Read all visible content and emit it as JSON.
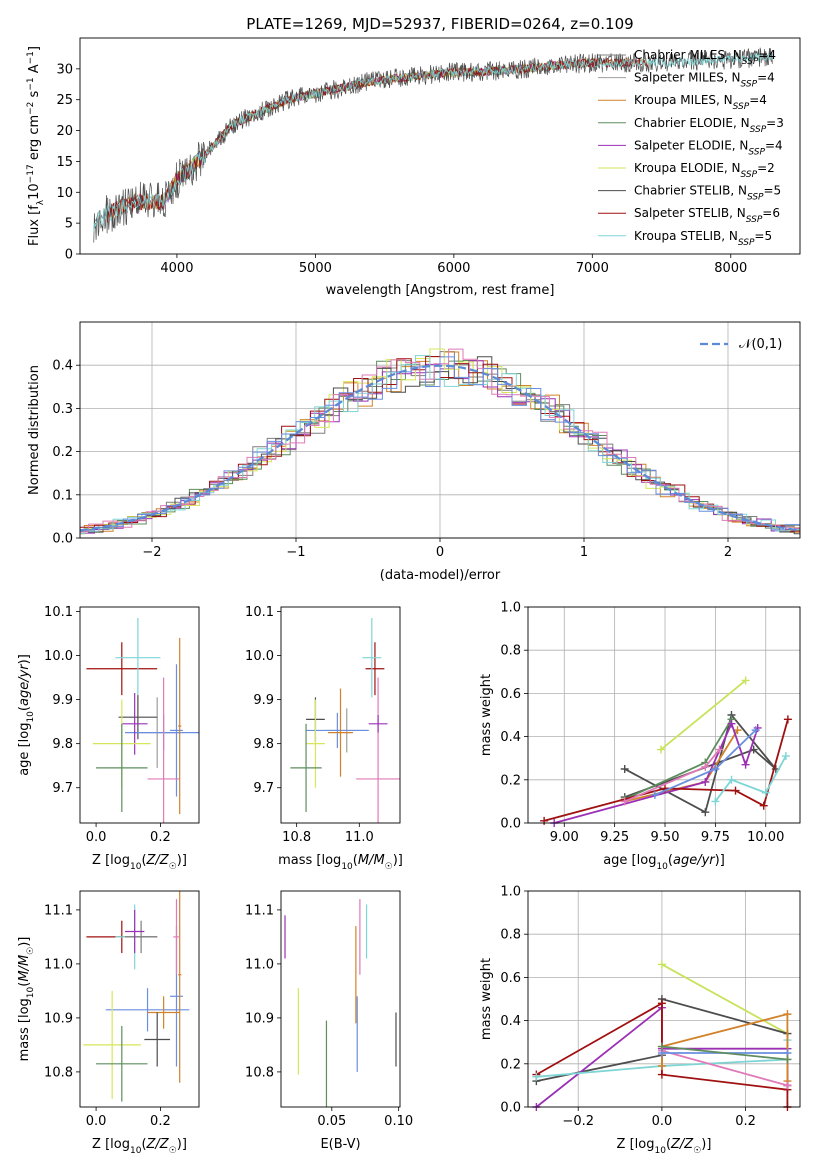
{
  "colors": [
    "#7f7f7f",
    "#9e9e9e",
    "#d2822a",
    "#5e8d5e",
    "#9b30b5",
    "#d7e55a",
    "#4d4d4d",
    "#a01010",
    "#7fd5d5",
    "#e07ab8",
    "#6a8ee0",
    "#c7e35a"
  ],
  "chart_data": [
    {
      "id": "spectrum",
      "type": "line",
      "title": "PLATE=1269, MJD=52937, FIBERID=0264, z=0.109",
      "xlabel": "wavelength [Angstrom, rest frame]",
      "ylabel": "Flux [f_λ 10^-17 erg cm^-2 s^-1 A^-1]",
      "xlim": [
        3300,
        8500
      ],
      "ylim": [
        0,
        35
      ],
      "xticks": [
        4000,
        5000,
        6000,
        7000,
        8000
      ],
      "yticks": [
        0,
        5,
        10,
        15,
        20,
        25,
        30
      ],
      "grid": false,
      "legend_position": "upper-right",
      "continuum": {
        "x": [
          3400,
          3500,
          3700,
          3900,
          4000,
          4200,
          4400,
          4600,
          4800,
          5000,
          5200,
          5400,
          5600,
          5800,
          6000,
          6200,
          6500,
          6700,
          7000,
          7300,
          7600,
          8000,
          8300
        ],
        "y": [
          5,
          6.5,
          8.5,
          8.5,
          12,
          16,
          21,
          23,
          25,
          26,
          27,
          28,
          28.5,
          29,
          29.5,
          29.5,
          30,
          30.5,
          31,
          31,
          31,
          31.5,
          32
        ]
      },
      "series": [
        {
          "name": "Chabrier MILES, N_SSP=4",
          "x_range": [
            3400,
            7250
          ]
        },
        {
          "name": "Salpeter MILES, N_SSP=4",
          "x_range": [
            3500,
            7250
          ]
        },
        {
          "name": "Kroupa MILES, N_SSP=4",
          "x_range": [
            3500,
            7400
          ]
        },
        {
          "name": "Chabrier ELODIE, N_SSP=3",
          "x_range": [
            3900,
            6800
          ]
        },
        {
          "name": "Salpeter ELODIE, N_SSP=4",
          "x_range": [
            3900,
            6800
          ]
        },
        {
          "name": "Kroupa ELODIE, N_SSP=2",
          "x_range": [
            3900,
            6800
          ]
        },
        {
          "name": "Chabrier STELIB, N_SSP=5",
          "x_range": [
            3400,
            8300
          ]
        },
        {
          "name": "Salpeter STELIB, N_SSP=6",
          "x_range": [
            3500,
            7400
          ]
        },
        {
          "name": "Kroupa STELIB, N_SSP=5",
          "x_range": [
            3400,
            8300
          ]
        }
      ],
      "legend": [
        {
          "base": "Chabrier MILES, N",
          "sub": "SSP",
          "tail": "=4"
        },
        {
          "base": "Salpeter MILES, N",
          "sub": "SSP",
          "tail": "=4"
        },
        {
          "base": "Kroupa MILES, N",
          "sub": "SSP",
          "tail": "=4"
        },
        {
          "base": "Chabrier ELODIE, N",
          "sub": "SSP",
          "tail": "=3"
        },
        {
          "base": "Salpeter ELODIE, N",
          "sub": "SSP",
          "tail": "=4"
        },
        {
          "base": "Kroupa ELODIE, N",
          "sub": "SSP",
          "tail": "=2"
        },
        {
          "base": "Chabrier STELIB, N",
          "sub": "SSP",
          "tail": "=5"
        },
        {
          "base": "Salpeter STELIB, N",
          "sub": "SSP",
          "tail": "=6"
        },
        {
          "base": "Kroupa STELIB, N",
          "sub": "SSP",
          "tail": "=5"
        }
      ]
    },
    {
      "id": "residuals",
      "type": "line",
      "xlabel": "(data-model)/error",
      "ylabel": "Normed distribution",
      "xlim": [
        -2.5,
        2.5
      ],
      "ylim": [
        0,
        0.5
      ],
      "xticks": [
        -2,
        -1,
        0,
        1,
        2
      ],
      "yticks": [
        0.0,
        0.1,
        0.2,
        0.3,
        0.4
      ],
      "grid": true,
      "legend": "𝒩(0,1)",
      "legend_position": "upper-right",
      "bin_width": 0.1,
      "gaussian": {
        "mean": 0,
        "sigma": 1
      }
    },
    {
      "id": "age-vs-Z",
      "type": "scatter",
      "xlabel": "Z [log₁₀(Z/Z☉)]",
      "ylabel": "age [log₁₀(age/yr)]",
      "xlim": [
        -0.05,
        0.32
      ],
      "ylim": [
        9.62,
        10.11
      ],
      "xticks": [
        0.0,
        0.2
      ],
      "yticks": [
        9.7,
        9.8,
        9.9,
        10.0,
        10.1
      ],
      "points": [
        {
          "x": 0.08,
          "xerr": 0.11,
          "y": 9.97,
          "yerr": 0.06,
          "c": 7
        },
        {
          "x": 0.13,
          "xerr": 0.07,
          "y": 9.995,
          "yerr": 0.09,
          "c": 8
        },
        {
          "x": 0.19,
          "xerr": 0.07,
          "y": 9.825,
          "yerr": 0.08,
          "c": 1
        },
        {
          "x": 0.13,
          "xerr": 0.06,
          "y": 9.86,
          "yerr": 0.05,
          "c": 6
        },
        {
          "x": 0.21,
          "xerr": 0.12,
          "y": 9.825,
          "yerr": 0.04,
          "c": 10
        },
        {
          "x": 0.25,
          "xerr": 0.02,
          "y": 9.83,
          "yerr": 0.15,
          "c": 10
        },
        {
          "x": 0.26,
          "xerr": 0.005,
          "y": 9.84,
          "yerr": 0.2,
          "c": 2
        },
        {
          "x": 0.21,
          "xerr": 0.05,
          "y": 9.72,
          "yerr": 0.23,
          "c": 9
        },
        {
          "x": 0.12,
          "xerr": 0.04,
          "y": 9.845,
          "yerr": 0.07,
          "c": 4
        },
        {
          "x": 0.08,
          "xerr": 0.09,
          "y": 9.8,
          "yerr": 0.1,
          "c": 5
        },
        {
          "x": 0.08,
          "xerr": 0.08,
          "y": 9.745,
          "yerr": 0.1,
          "c": 3
        }
      ]
    },
    {
      "id": "age-vs-mass",
      "type": "scatter",
      "xlabel": "mass [log₁₀(M/M☉)]",
      "ylabel": "",
      "xlim": [
        10.75,
        11.13
      ],
      "ylim": [
        9.62,
        10.11
      ],
      "xticks": [
        10.8,
        11.0
      ],
      "yticks": [
        9.7,
        9.8,
        9.9,
        10.0,
        10.1
      ],
      "points": [
        {
          "x": 11.05,
          "xerr": 0.03,
          "y": 9.97,
          "yerr": 0.06,
          "c": 7
        },
        {
          "x": 11.04,
          "xerr": 0.03,
          "y": 9.995,
          "yerr": 0.09,
          "c": 8
        },
        {
          "x": 10.96,
          "xerr": 0.07,
          "y": 9.83,
          "yerr": 0.05,
          "c": 1
        },
        {
          "x": 10.86,
          "xerr": 0.03,
          "y": 9.855,
          "yerr": 0.05,
          "c": 6
        },
        {
          "x": 10.93,
          "xerr": 0.1,
          "y": 9.83,
          "yerr": 0.04,
          "c": 10
        },
        {
          "x": 10.94,
          "xerr": 0.04,
          "y": 9.825,
          "yerr": 0.1,
          "c": 2
        },
        {
          "x": 11.06,
          "xerr": 0.07,
          "y": 9.72,
          "yerr": 0.23,
          "c": 9
        },
        {
          "x": 11.06,
          "xerr": 0.03,
          "y": 9.845,
          "yerr": 0.02,
          "c": 4
        },
        {
          "x": 10.86,
          "xerr": 0.03,
          "y": 9.8,
          "yerr": 0.1,
          "c": 5
        },
        {
          "x": 10.83,
          "xerr": 0.05,
          "y": 9.745,
          "yerr": 0.1,
          "c": 3
        }
      ]
    },
    {
      "id": "weight-vs-age",
      "type": "line",
      "xlabel": "age [log₁₀(age/yr)]",
      "ylabel": "mass weight",
      "xlim": [
        8.82,
        10.17
      ],
      "ylim": [
        0,
        1.0
      ],
      "xticks": [
        9.0,
        9.25,
        9.5,
        9.75,
        10.0
      ],
      "yticks": [
        0.0,
        0.2,
        0.4,
        0.6,
        0.8,
        1.0
      ],
      "grid": true,
      "series": [
        {
          "c": 11,
          "x": [
            9.48,
            9.9
          ],
          "y": [
            0.34,
            0.66
          ]
        },
        {
          "c": 6,
          "x": [
            9.3,
            9.7,
            9.83,
            10.05,
            9.94,
            9.3
          ],
          "y": [
            0.25,
            0.05,
            0.5,
            0.25,
            0.34,
            0.12
          ]
        },
        {
          "c": 3,
          "x": [
            9.3,
            9.7,
            9.83
          ],
          "y": [
            0.11,
            0.28,
            0.48
          ]
        },
        {
          "c": 2,
          "x": [
            9.3,
            9.7,
            9.86
          ],
          "y": [
            0.1,
            0.19,
            0.43
          ]
        },
        {
          "c": 4,
          "x": [
            8.95,
            9.7,
            9.83,
            9.9,
            9.96
          ],
          "y": [
            0.0,
            0.19,
            0.46,
            0.27,
            0.44
          ]
        },
        {
          "c": 7,
          "x": [
            8.9,
            9.5,
            9.85,
            9.99,
            10.11
          ],
          "y": [
            0.01,
            0.16,
            0.15,
            0.08,
            0.48
          ]
        },
        {
          "c": 8,
          "x": [
            9.75,
            9.83,
            10.0,
            10.1
          ],
          "y": [
            0.1,
            0.2,
            0.14,
            0.31
          ]
        },
        {
          "c": 9,
          "x": [
            9.3,
            9.7,
            9.77
          ],
          "y": [
            0.1,
            0.26,
            0.34
          ]
        },
        {
          "c": 10,
          "x": [
            9.45,
            9.75,
            9.95
          ],
          "y": [
            0.13,
            0.25,
            0.43
          ]
        }
      ]
    },
    {
      "id": "mass-vs-Z",
      "type": "scatter",
      "xlabel": "Z [log₁₀(Z/Z☉)]",
      "ylabel": "mass [log₁₀(M/M☉)]",
      "xlim": [
        -0.05,
        0.32
      ],
      "ylim": [
        10.735,
        11.135
      ],
      "xticks": [
        0.0,
        0.2
      ],
      "yticks": [
        10.8,
        10.9,
        11.0,
        11.1
      ],
      "points": [
        {
          "x": 0.08,
          "xerr": 0.11,
          "y": 11.05,
          "yerr": 0.03,
          "c": 7
        },
        {
          "x": 0.12,
          "xerr": 0.06,
          "y": 11.05,
          "yerr": 0.06,
          "c": 8
        },
        {
          "x": 0.14,
          "xerr": 0.05,
          "y": 11.05,
          "yerr": 0.03,
          "c": 0
        },
        {
          "x": 0.16,
          "xerr": 0.13,
          "y": 10.915,
          "yerr": 0.04,
          "c": 10
        },
        {
          "x": 0.25,
          "xerr": 0.02,
          "y": 10.94,
          "yerr": 0.13,
          "c": 10
        },
        {
          "x": 0.26,
          "xerr": 0.005,
          "y": 10.98,
          "yerr": 0.2,
          "c": 2
        },
        {
          "x": 0.21,
          "xerr": 0.05,
          "y": 10.91,
          "yerr": 0.03,
          "c": 2
        },
        {
          "x": 0.25,
          "xerr": 0.01,
          "y": 11.05,
          "yerr": 0.07,
          "c": 9
        },
        {
          "x": 0.12,
          "xerr": 0.03,
          "y": 11.06,
          "yerr": 0.04,
          "c": 4
        },
        {
          "x": 0.05,
          "xerr": 0.09,
          "y": 10.85,
          "yerr": 0.1,
          "c": 5
        },
        {
          "x": 0.19,
          "xerr": 0.04,
          "y": 10.86,
          "yerr": 0.05,
          "c": 6
        },
        {
          "x": 0.08,
          "xerr": 0.08,
          "y": 10.815,
          "yerr": 0.07,
          "c": 3
        }
      ]
    },
    {
      "id": "mass-vs-ebv",
      "type": "scatter",
      "xlabel": "E(B-V)",
      "ylabel": "",
      "xlim": [
        0.012,
        0.101
      ],
      "ylim": [
        10.735,
        11.135
      ],
      "xticks": [
        0.05,
        0.1
      ],
      "yticks": [
        10.8,
        10.9,
        11.0,
        11.1
      ],
      "points": [
        {
          "x": 0.015,
          "y": 11.05,
          "yerr": 0.04,
          "c": 4
        },
        {
          "x": 0.025,
          "y": 10.875,
          "yerr": 0.08,
          "c": 5
        },
        {
          "x": 0.046,
          "y": 10.815,
          "yerr": 0.08,
          "c": 3
        },
        {
          "x": 0.068,
          "y": 10.98,
          "yerr": 0.09,
          "c": 2
        },
        {
          "x": 0.069,
          "y": 10.87,
          "yerr": 0.07,
          "c": 10
        },
        {
          "x": 0.071,
          "y": 11.05,
          "yerr": 0.07,
          "c": 9
        },
        {
          "x": 0.076,
          "y": 11.06,
          "yerr": 0.05,
          "c": 8
        },
        {
          "x": 0.098,
          "y": 10.86,
          "yerr": 0.05,
          "c": 6
        }
      ]
    },
    {
      "id": "weight-vs-Z",
      "type": "line",
      "xlabel": "Z [log₁₀(Z/Z☉)]",
      "ylabel": "mass weight",
      "xlim": [
        -0.32,
        0.33
      ],
      "ylim": [
        0,
        1.0
      ],
      "xticks": [
        -0.2,
        0.0,
        0.2
      ],
      "yticks": [
        0.0,
        0.2,
        0.4,
        0.6,
        0.8,
        1.0
      ],
      "grid": true,
      "series": [
        {
          "c": 11,
          "x": [
            0.0,
            0.3
          ],
          "y": [
            0.66,
            0.34
          ]
        },
        {
          "c": 6,
          "x": [
            -0.3,
            0.0,
            0.0,
            0.3,
            0.3
          ],
          "y": [
            0.12,
            0.24,
            0.5,
            0.34,
            0.1
          ]
        },
        {
          "c": 4,
          "x": [
            -0.3,
            0.0,
            0.0,
            0.3,
            0.3
          ],
          "y": [
            0.0,
            0.46,
            0.27,
            0.27,
            0.1
          ]
        },
        {
          "c": 7,
          "x": [
            -0.3,
            0.0,
            0.0,
            0.3,
            0.3
          ],
          "y": [
            0.15,
            0.48,
            0.15,
            0.08,
            0.0
          ]
        },
        {
          "c": 8,
          "x": [
            -0.3,
            0.0,
            0.3,
            0.3
          ],
          "y": [
            0.14,
            0.19,
            0.22,
            0.31
          ]
        },
        {
          "c": 2,
          "x": [
            0.0,
            0.0,
            0.3,
            0.3
          ],
          "y": [
            0.19,
            0.28,
            0.43,
            0.12
          ]
        },
        {
          "c": 9,
          "x": [
            0.0,
            0.3
          ],
          "y": [
            0.26,
            0.1
          ]
        },
        {
          "c": 10,
          "x": [
            0.0,
            0.3
          ],
          "y": [
            0.25,
            0.25
          ]
        },
        {
          "c": 3,
          "x": [
            0.0,
            0.3
          ],
          "y": [
            0.28,
            0.22
          ]
        }
      ]
    }
  ]
}
